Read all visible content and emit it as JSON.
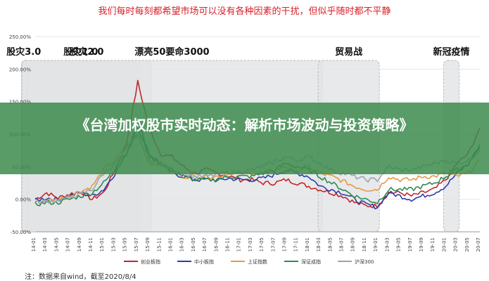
{
  "header": {
    "title": "我们每时每刻都希望市场可以没有各种因素的干扰，但似乎随时都不平静"
  },
  "banner": {
    "text": "《台湾加权股市实时动态：解析市场波动与投资策略》"
  },
  "footer": {
    "note": "注：数据来自wind，截至2020/8/4"
  },
  "chart_data": {
    "type": "line",
    "title": "",
    "xlabel": "",
    "ylabel": "",
    "ylim": [
      -50,
      250
    ],
    "y_ticks": [
      "250.00%",
      "200.00%",
      "150.00%",
      "100.00%",
      "50.00%",
      "0.00%",
      "-50.00%"
    ],
    "x_ticks": [
      "14-01",
      "14-03",
      "14-05",
      "14-07",
      "14-09",
      "14-11",
      "15-01",
      "15-03",
      "15-05",
      "15-07",
      "15-09",
      "15-11",
      "16-01",
      "16-03",
      "16-05",
      "16-07",
      "16-09",
      "16-11",
      "17-01",
      "17-03",
      "17-05",
      "17-07",
      "17-09",
      "17-11",
      "18-01",
      "18-03",
      "18-05",
      "18-07",
      "18-09",
      "18-11",
      "19-01",
      "19-03",
      "19-05",
      "19-07",
      "19-09",
      "19-11",
      "20-01",
      "20-03",
      "20-05",
      "20-07"
    ],
    "grid": true,
    "legend_position": "bottom",
    "events": [
      {
        "label": "股灾1.0",
        "start": "15-06",
        "end": "15-07"
      },
      {
        "label": "股灾2.0",
        "start": "15-08",
        "end": "15-09"
      },
      {
        "label": "股灾3.0",
        "start": "15-12",
        "end": "16-02"
      },
      {
        "label": "漂亮50要命3000",
        "start": "17-02",
        "end": "18-03"
      },
      {
        "label": "贸易战",
        "start": "18-03",
        "end": "19-01"
      },
      {
        "label": "新冠疫情",
        "start": "20-01",
        "end": "20-03"
      }
    ],
    "series": [
      {
        "name": "创业板指",
        "color": "#c0272d",
        "values": [
          0,
          10,
          2,
          8,
          12,
          0,
          10,
          45,
          85,
          180,
          110,
          70,
          65,
          50,
          40,
          45,
          40,
          35,
          30,
          30,
          25,
          25,
          30,
          25,
          20,
          15,
          10,
          5,
          -5,
          -10,
          -10,
          10,
          10,
          5,
          10,
          15,
          30,
          55,
          70,
          110
        ]
      },
      {
        "name": "中小板指",
        "color": "#2c3fa8",
        "values": [
          -2,
          2,
          0,
          5,
          10,
          5,
          15,
          40,
          70,
          120,
          70,
          55,
          40,
          35,
          30,
          30,
          30,
          32,
          30,
          30,
          32,
          38,
          45,
          40,
          35,
          20,
          15,
          10,
          0,
          -8,
          -12,
          10,
          5,
          0,
          5,
          10,
          20,
          40,
          55,
          80
        ]
      },
      {
        "name": "上证指数",
        "color": "#e59a45",
        "values": [
          -5,
          -2,
          0,
          5,
          12,
          20,
          45,
          60,
          80,
          100,
          55,
          55,
          45,
          35,
          35,
          35,
          35,
          40,
          40,
          40,
          40,
          45,
          50,
          45,
          50,
          40,
          35,
          28,
          20,
          15,
          15,
          35,
          30,
          30,
          35,
          35,
          40,
          35,
          40,
          60
        ]
      },
      {
        "name": "深证成指",
        "color": "#2f8a52",
        "values": [
          -8,
          -5,
          -5,
          0,
          5,
          10,
          25,
          45,
          70,
          110,
          65,
          55,
          45,
          35,
          30,
          30,
          30,
          35,
          35,
          35,
          40,
          45,
          55,
          50,
          45,
          35,
          25,
          15,
          5,
          0,
          -5,
          15,
          15,
          15,
          20,
          25,
          35,
          45,
          55,
          85
        ]
      },
      {
        "name": "沪深300",
        "color": "#9aa4b3",
        "values": [
          -5,
          -3,
          -2,
          3,
          8,
          15,
          40,
          55,
          75,
          100,
          60,
          55,
          45,
          40,
          35,
          35,
          38,
          42,
          42,
          45,
          50,
          58,
          65,
          60,
          65,
          55,
          45,
          40,
          35,
          30,
          30,
          50,
          45,
          45,
          50,
          55,
          60,
          55,
          60,
          75
        ]
      }
    ]
  }
}
